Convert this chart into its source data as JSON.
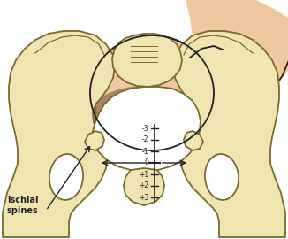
{
  "bg": "#ffffff",
  "pf": "#f0e4b0",
  "po": "#7a6a30",
  "skin": "#f0c8a0",
  "skin_dark": "#e8b888",
  "hair_fill": "#a08060",
  "hair_line": "#706040",
  "outline": "#403820",
  "station_labels": [
    "-3",
    "-2",
    "-1",
    "0",
    "+1",
    "+2",
    "+3"
  ],
  "lc": "#222222",
  "tc": "#222222"
}
